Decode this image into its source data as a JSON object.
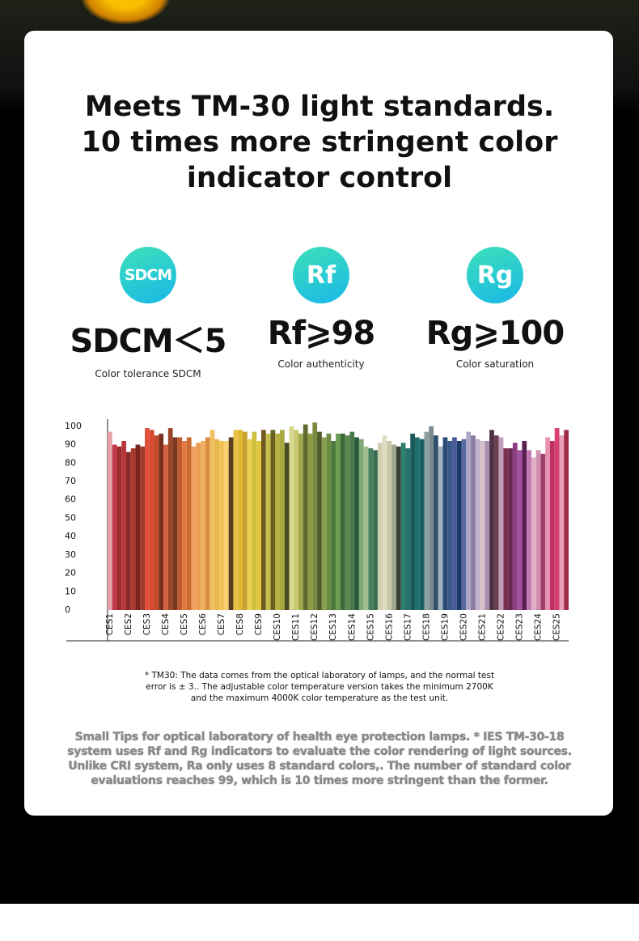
{
  "header": {
    "title": "Meets TM-30 light standards. 10 times more stringent color indicator control"
  },
  "metrics": [
    {
      "icon": "SDCM",
      "value": "SDCM＜5",
      "caption": "Color tolerance SDCM"
    },
    {
      "icon": "Rf",
      "value": "Rf⩾98",
      "caption": "Color authenticity"
    },
    {
      "icon": "Rg",
      "value": "Rg⩾100",
      "caption": "Color saturation"
    }
  ],
  "chart_data": {
    "type": "bar",
    "categories": [
      "CES1",
      null,
      null,
      null,
      "CES2",
      null,
      null,
      null,
      "CES3",
      null,
      null,
      null,
      "CES4",
      null,
      null,
      null,
      "CES5",
      null,
      null,
      null,
      "CES6",
      null,
      null,
      null,
      "CES7",
      null,
      null,
      null,
      "CES8",
      null,
      null,
      null,
      "CES9",
      null,
      null,
      null,
      "CES10",
      null,
      null,
      null,
      "CES11",
      null,
      null,
      null,
      "CES12",
      null,
      null,
      null,
      "CES13",
      null,
      null,
      null,
      "CES14",
      null,
      null,
      null,
      "CES15",
      null,
      null,
      null,
      "CES16",
      null,
      null,
      null,
      "CES17",
      null,
      null,
      null,
      "CES18",
      null,
      null,
      null,
      "CES19",
      null,
      null,
      null,
      "CES20",
      null,
      null,
      null,
      "CES21",
      null,
      null,
      null,
      "CES22",
      null,
      null,
      null,
      "CES23",
      null,
      null,
      null,
      "CES24",
      null,
      null,
      null,
      "CES25",
      null,
      null
    ],
    "values": [
      97,
      90,
      89,
      92,
      86,
      88,
      90,
      89,
      99,
      98,
      95,
      96,
      90,
      99,
      94,
      94,
      92,
      94,
      89,
      91,
      92,
      94,
      98,
      93,
      92,
      92,
      94,
      98,
      98,
      97,
      93,
      97,
      92,
      98,
      96,
      98,
      96,
      98,
      91,
      100,
      98,
      96,
      101,
      96,
      102,
      97,
      94,
      96,
      92,
      96,
      96,
      95,
      97,
      94,
      93,
      89,
      88,
      87,
      91,
      95,
      92,
      90,
      89,
      91,
      88,
      96,
      94,
      93,
      97,
      100,
      95,
      89,
      94,
      92,
      94,
      92,
      93,
      97,
      95,
      93,
      92,
      92,
      98,
      95,
      94,
      88,
      88,
      91,
      87,
      92,
      87,
      83,
      87,
      85,
      94,
      92,
      99,
      95,
      98
    ],
    "colors": [
      "#e8a0a8",
      "#c0394a",
      "#9e2a30",
      "#b8383a",
      "#8a2a28",
      "#a83a30",
      "#7a2420",
      "#a03a2a",
      "#e0503a",
      "#d84a30",
      "#c04a2a",
      "#7a3020",
      "#d06040",
      "#9a4428",
      "#7a3a20",
      "#c05a30",
      "#e07a40",
      "#c86a30",
      "#f0a060",
      "#e8a050",
      "#f0b060",
      "#d89040",
      "#f0c060",
      "#e8b850",
      "#f0c050",
      "#f8d070",
      "#5a4020",
      "#e8c048",
      "#e0b830",
      "#c8a030",
      "#e8d050",
      "#d0c040",
      "#e0c840",
      "#705a20",
      "#c8c050",
      "#6a6020",
      "#b8b040",
      "#a8a840",
      "#4a4a20",
      "#d8d890",
      "#c8c870",
      "#a0a850",
      "#606a30",
      "#909a40",
      "#7a8a40",
      "#505a28",
      "#8aa050",
      "#6a8a40",
      "#4a7a40",
      "#6a9a50",
      "#3a6a3a",
      "#5a8a50",
      "#4a7a4a",
      "#2a5a3a",
      "#80a878",
      "#a0c090",
      "#4a8060",
      "#3a7050",
      "#d0d0b0",
      "#e0dcc0",
      "#c8c8a8",
      "#a0a890",
      "#3a4030",
      "#308070",
      "#2a7070",
      "#1a5a5a",
      "#207070",
      "#186060",
      "#90a0a0",
      "#7a8a90",
      "#30506a",
      "#a0b0c0",
      "#2a4a7a",
      "#3a5a8a",
      "#4a5a9a",
      "#1a3a6a",
      "#5a6aa0",
      "#b0a8c8",
      "#8a7aa0",
      "#c0b0c8",
      "#d8c0c8",
      "#a890b0",
      "#4a3040",
      "#6a4050",
      "#c0a0b8",
      "#7a3050",
      "#6a2a50",
      "#8a4080",
      "#a050a0",
      "#5a2050",
      "#c07ab0",
      "#e0b0c8",
      "#d090b0",
      "#a0406a",
      "#e890b0",
      "#c03060",
      "#d84070",
      "#e8a0b8",
      "#a02a4a"
    ],
    "ylim": [
      0,
      103
    ],
    "yticks": [
      0,
      10,
      20,
      30,
      40,
      50,
      60,
      70,
      80,
      90,
      100
    ],
    "grid": false
  },
  "footnote": "* TM30: The data comes from the optical laboratory of lamps, and the normal test error is ± 3.. The adjustable color temperature version takes the minimum 2700K and the maximum 4000K color temperature as the test unit.",
  "tips": "Small Tips for optical laboratory of health eye protection lamps. * IES TM-30-18 system uses Rf and Rg indicators to evaluate the color rendering of light sources. Unlike CRI system, Ra only uses 8 standard colors,. The number of standard color evaluations reaches 99, which is 10 times more stringent than the former."
}
